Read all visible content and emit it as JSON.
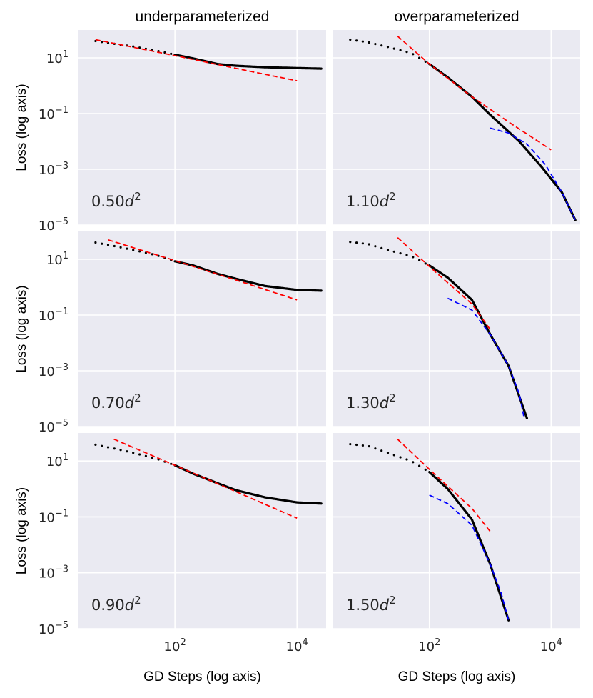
{
  "columns": [
    "underparameterized",
    "overparameterized"
  ],
  "chart_data": {
    "type": "line",
    "layout": "3x2 grid of log-log panels",
    "xlabel": "GD Steps (log axis)",
    "ylabel": "Loss (log axis)",
    "x_scale": "log",
    "y_scale": "log",
    "xlim": [
      2.63,
      30000
    ],
    "ylim": [
      1e-05,
      100
    ],
    "x_ticks": [
      {
        "value": 100,
        "base": "10",
        "exp": "2"
      },
      {
        "value": 10000,
        "base": "10",
        "exp": "4"
      }
    ],
    "y_ticks": [
      {
        "value": 10,
        "base": "10",
        "exp": "1"
      },
      {
        "value": 0.1,
        "base": "10",
        "exp": "−1"
      },
      {
        "value": 0.001,
        "base": "10",
        "exp": "−3"
      },
      {
        "value": 1e-05,
        "base": "10",
        "exp": "−5"
      }
    ],
    "series_styles": {
      "loss": {
        "color": "#000000",
        "style": "dotted-markers"
      },
      "power_law_fit": {
        "color": "#ff0000",
        "style": "dashed"
      },
      "late_fit": {
        "color": "#0000ff",
        "style": "dashed"
      }
    },
    "panels": [
      {
        "label_coef": "0.50",
        "label_var": "d",
        "label_exp": "2",
        "column": "underparameterized",
        "loss": [
          [
            5,
            40
          ],
          [
            10,
            32
          ],
          [
            20,
            26
          ],
          [
            50,
            18
          ],
          [
            100,
            13
          ],
          [
            200,
            9.5
          ],
          [
            500,
            6
          ],
          [
            1000,
            5.2
          ],
          [
            3000,
            4.6
          ],
          [
            10000,
            4.3
          ],
          [
            25000,
            4.1
          ]
        ],
        "power_law_fit": [
          [
            5,
            45
          ],
          [
            100,
            12
          ],
          [
            1000,
            4.2
          ],
          [
            10000,
            1.5
          ]
        ],
        "late_fit": []
      },
      {
        "label_coef": "1.10",
        "label_var": "d",
        "label_exp": "2",
        "column": "overparameterized",
        "loss": [
          [
            5,
            45
          ],
          [
            10,
            36
          ],
          [
            20,
            25
          ],
          [
            50,
            15
          ],
          [
            100,
            6
          ],
          [
            200,
            2
          ],
          [
            500,
            0.4
          ],
          [
            1000,
            0.09
          ],
          [
            3000,
            0.01
          ],
          [
            7000,
            0.0012
          ],
          [
            15000,
            0.00015
          ],
          [
            25000,
            1.5e-05
          ]
        ],
        "power_law_fit": [
          [
            30,
            60
          ],
          [
            100,
            6
          ],
          [
            500,
            0.4
          ],
          [
            2000,
            0.05
          ],
          [
            10000,
            0.005
          ]
        ],
        "late_fit": [
          [
            1000,
            0.03
          ],
          [
            2000,
            0.02
          ],
          [
            4000,
            0.008
          ],
          [
            8000,
            0.0015
          ],
          [
            15000,
            0.00015
          ],
          [
            25000,
            1.5e-05
          ]
        ]
      },
      {
        "label_coef": "0.70",
        "label_var": "d",
        "label_exp": "2",
        "column": "underparameterized",
        "loss": [
          [
            5,
            40
          ],
          [
            10,
            30
          ],
          [
            20,
            22
          ],
          [
            50,
            14
          ],
          [
            100,
            8.5
          ],
          [
            200,
            6
          ],
          [
            500,
            3
          ],
          [
            1000,
            2
          ],
          [
            3000,
            1.1
          ],
          [
            10000,
            0.8
          ],
          [
            25000,
            0.75
          ]
        ],
        "power_law_fit": [
          [
            8,
            50
          ],
          [
            100,
            9
          ],
          [
            1000,
            1.8
          ],
          [
            10000,
            0.35
          ]
        ],
        "late_fit": []
      },
      {
        "label_coef": "1.30",
        "label_var": "d",
        "label_exp": "2",
        "column": "overparameterized",
        "loss": [
          [
            5,
            42
          ],
          [
            10,
            35
          ],
          [
            20,
            22
          ],
          [
            50,
            13
          ],
          [
            100,
            6
          ],
          [
            200,
            2.2
          ],
          [
            500,
            0.35
          ],
          [
            1000,
            0.02
          ],
          [
            2000,
            0.0015
          ],
          [
            4000,
            2e-05
          ]
        ],
        "power_law_fit": [
          [
            30,
            60
          ],
          [
            100,
            5.5
          ],
          [
            500,
            0.25
          ],
          [
            1000,
            0.03
          ]
        ],
        "late_fit": [
          [
            200,
            0.4
          ],
          [
            500,
            0.15
          ],
          [
            1000,
            0.02
          ],
          [
            2000,
            0.0015
          ],
          [
            3000,
            0.00015
          ],
          [
            3600,
            2e-05
          ]
        ]
      },
      {
        "label_coef": "0.90",
        "label_var": "d",
        "label_exp": "2",
        "column": "underparameterized",
        "loss": [
          [
            5,
            38
          ],
          [
            10,
            28
          ],
          [
            20,
            20
          ],
          [
            50,
            12
          ],
          [
            100,
            7
          ],
          [
            200,
            3.5
          ],
          [
            500,
            1.6
          ],
          [
            1000,
            0.9
          ],
          [
            3000,
            0.5
          ],
          [
            10000,
            0.33
          ],
          [
            25000,
            0.3
          ]
        ],
        "power_law_fit": [
          [
            10,
            60
          ],
          [
            100,
            7
          ],
          [
            1000,
            0.8
          ],
          [
            10000,
            0.09
          ]
        ],
        "late_fit": []
      },
      {
        "label_coef": "1.50",
        "label_var": "d",
        "label_exp": "2",
        "column": "overparameterized",
        "loss": [
          [
            5,
            40
          ],
          [
            10,
            34
          ],
          [
            20,
            20
          ],
          [
            50,
            10
          ],
          [
            100,
            4
          ],
          [
            200,
            1
          ],
          [
            500,
            0.08
          ],
          [
            1000,
            0.002
          ],
          [
            2000,
            2e-05
          ]
        ],
        "power_law_fit": [
          [
            30,
            60
          ],
          [
            100,
            5
          ],
          [
            500,
            0.2
          ],
          [
            1000,
            0.03
          ]
        ],
        "late_fit": [
          [
            100,
            0.6
          ],
          [
            200,
            0.3
          ],
          [
            500,
            0.05
          ],
          [
            1000,
            0.002
          ],
          [
            1500,
            0.0002
          ],
          [
            2000,
            2e-05
          ]
        ]
      }
    ]
  }
}
